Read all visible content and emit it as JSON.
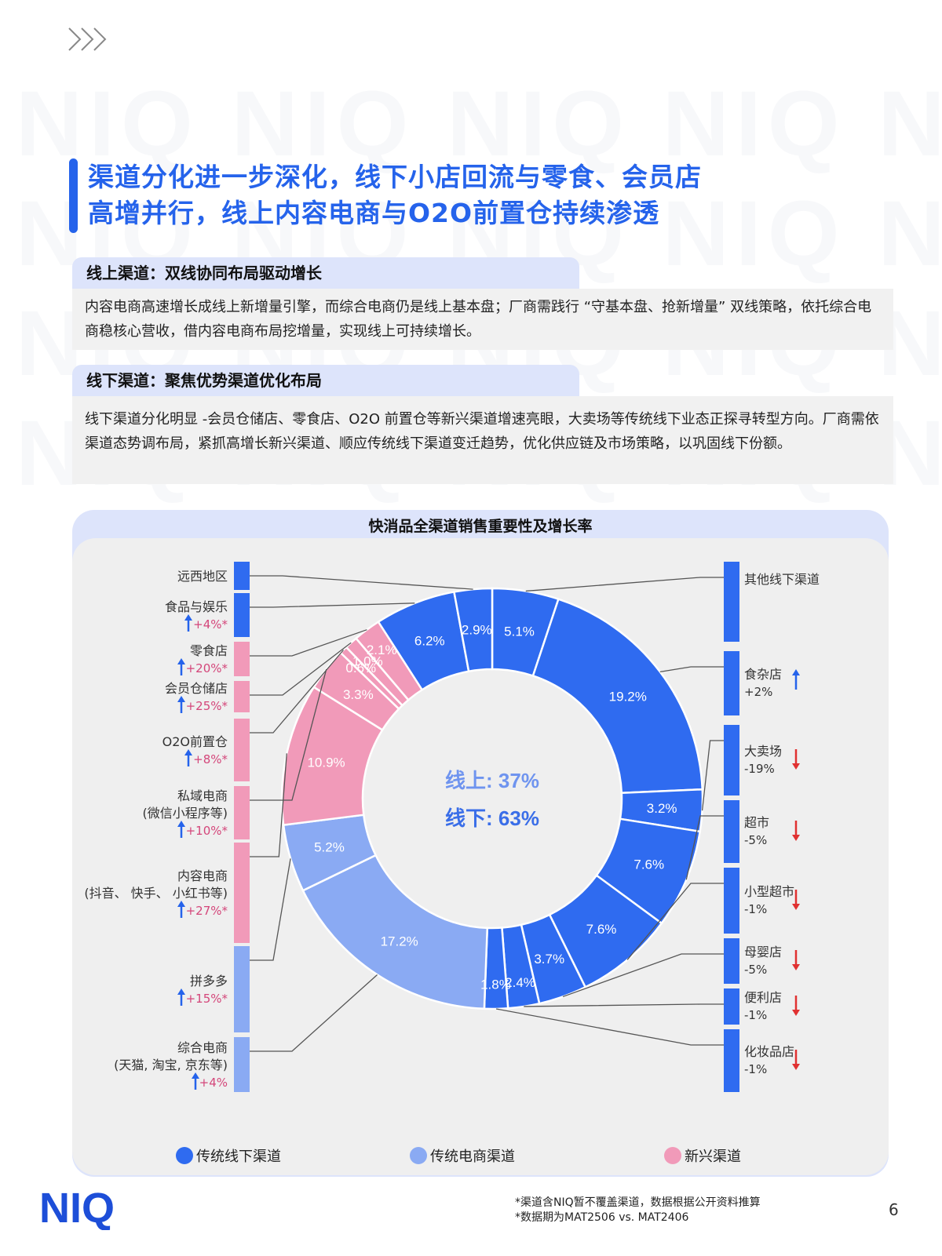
{
  "header": {
    "chevron_icon": "triple-chevron-right-icon"
  },
  "watermark_text": "NIQ",
  "title": {
    "line1": "渠道分化进一步深化，线下小店回流与零食、会员店",
    "line2": "高增并行，线上内容电商与O2O前置仓持续渗透"
  },
  "online_section": {
    "heading": "线上渠道：双线协同布局驱动增长",
    "body": "内容电商高速增长成线上新增量引擎，而综合电商仍是线上基本盘；厂商需践行 “守基本盘、抢新增量” 双线策略，依托综合电商稳核心营收，借内容电商布局挖增量，实现线上可持续增长。"
  },
  "offline_section": {
    "heading": "线下渠道：聚焦优势渠道优化布局",
    "body": "线下渠道分化明显 -会员仓储店、零食店、O2O 前置仓等新兴渠道增速亮眼，大卖场等传统线下业态正探寻转型方向。厂商需依渠道态势调布局，紧抓高增长新兴渠道、顺应传统线下渠道变迁趋势，优化供应链及市场策略，以巩固线下份额。"
  },
  "chart_data": {
    "type": "pie",
    "title": "快消品全渠道销售重要性及增长率",
    "center_labels": [
      "线上: 37%",
      "线下: 63%"
    ],
    "legend": [
      {
        "name": "传统线下渠道",
        "color": "#2f6bf0"
      },
      {
        "name": "传统电商渠道",
        "color": "#8aaaf3"
      },
      {
        "name": "新兴渠道",
        "color": "#f19ab9"
      }
    ],
    "slices": [
      {
        "label": "其他线下渠道",
        "value": 5.1,
        "value_label": "5.1%",
        "group": "traditional_offline"
      },
      {
        "label": "食杂店",
        "value": 19.2,
        "value_label": "19.2%",
        "growth": "+2%",
        "direction": "up",
        "group": "traditional_offline"
      },
      {
        "label": "大卖场",
        "value": 3.2,
        "value_label": "3.2%",
        "growth": "-19%",
        "direction": "down",
        "group": "traditional_offline"
      },
      {
        "label": "超市",
        "value": 7.6,
        "value_label": "7.6%",
        "growth": "-5%",
        "direction": "down",
        "group": "traditional_offline"
      },
      {
        "label": "小型超市",
        "value": 7.6,
        "value_label": "7.6%",
        "growth": "-1%",
        "direction": "down",
        "group": "traditional_offline"
      },
      {
        "label": "母婴店",
        "value": 3.7,
        "value_label": "3.7%",
        "growth": "-5%",
        "direction": "down",
        "group": "traditional_offline"
      },
      {
        "label": "便利店",
        "value": 2.4,
        "value_label": "2.4%",
        "growth": "-1%",
        "direction": "down",
        "group": "traditional_offline"
      },
      {
        "label": "化妆品店",
        "value": 1.8,
        "value_label": "1.8%",
        "growth": "-1%",
        "direction": "down",
        "group": "traditional_offline"
      },
      {
        "label": "综合电商",
        "sublabel": "(天猫, 淘宝, 京东等)",
        "value": 17.2,
        "value_label": "17.2%",
        "growth": "+4%",
        "direction": "up",
        "group": "traditional_ecommerce"
      },
      {
        "label": "拼多多",
        "value": 5.2,
        "value_label": "5.2%",
        "growth": "+15%*",
        "direction": "up",
        "group": "traditional_ecommerce"
      },
      {
        "label": "内容电商",
        "sublabel": "(抖音、 快手、 小红书等)",
        "value": 10.9,
        "value_label": "10.9%",
        "growth": "+27%*",
        "direction": "up",
        "group": "emerging"
      },
      {
        "label": "私域电商",
        "sublabel": "(微信小程序等)",
        "value": 3.3,
        "value_label": "3.3%",
        "growth": "+10%*",
        "direction": "up",
        "group": "emerging"
      },
      {
        "label": "O2O前置仓",
        "value": 0.6,
        "value_label": "0.6%",
        "growth": "+8%*",
        "direction": "up",
        "group": "emerging"
      },
      {
        "label": "会员仓储店",
        "value": 1.0,
        "value_label": "1.0%",
        "growth": "+25%*",
        "direction": "up",
        "group": "emerging"
      },
      {
        "label": "零食店",
        "value": 2.1,
        "value_label": "2.1%",
        "growth": "+20%*",
        "direction": "up",
        "group": "emerging"
      },
      {
        "label": "食品与娱乐",
        "value": 6.2,
        "value_label": "6.2%",
        "growth": "+4%*",
        "direction": "up",
        "group": "traditional_offline"
      },
      {
        "label": "远西地区",
        "value": 2.9,
        "value_label": "2.9%",
        "group": "traditional_offline"
      }
    ]
  },
  "footnote": {
    "line1": "*渠道含NIQ暂不覆盖渠道，数据根据公开资料推算",
    "line2": "*数据期为MAT2506 vs. MAT2406"
  },
  "page_number": "6",
  "logo": "NIQ"
}
